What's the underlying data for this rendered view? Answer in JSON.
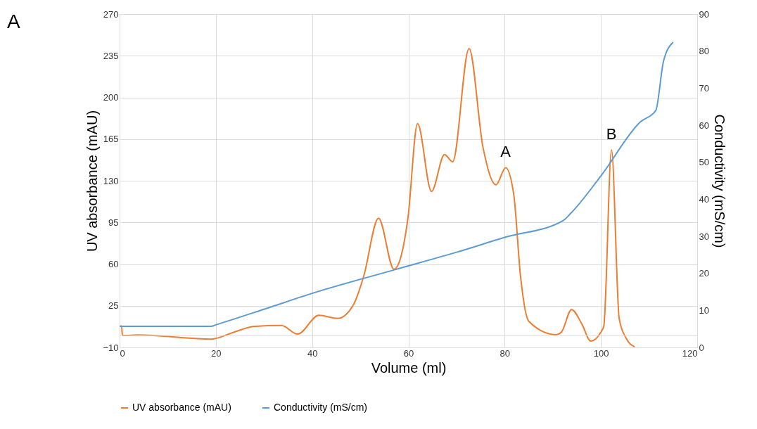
{
  "chart_data": {
    "type": "line",
    "xlabel": "Volume (ml)",
    "ylabel": "UV absorbance (mAU)",
    "y2label": "Conductivity (mS/cm)",
    "xlim": [
      0,
      120
    ],
    "xticks": [
      0,
      20,
      40,
      60,
      80,
      100,
      120
    ],
    "ylim": [
      -10,
      270
    ],
    "yticks": [
      -10,
      25,
      60,
      95,
      130,
      165,
      200,
      235,
      270
    ],
    "y2lim": [
      0,
      90
    ],
    "y2ticks": [
      0,
      10,
      20,
      30,
      40,
      50,
      60,
      70,
      80,
      90
    ],
    "grid": true,
    "legend": "bottom",
    "marker": "none",
    "line_style": "solid",
    "series": [
      {
        "name": "UV absorbance (mAU)",
        "color": "#ed7d31",
        "x": [
          0.1,
          0.4,
          0.6,
          3.9,
          19,
          23.9,
          27.8,
          33.6,
          37,
          41.4,
          45.3,
          48.7,
          50.7,
          53.8,
          57,
          58.5,
          59.9,
          61.9,
          64.8,
          67.5,
          69.2,
          72.6,
          75.5,
          78.2,
          80.2,
          81.9,
          83.3,
          85,
          90.6,
          91.8,
          93.9,
          96,
          97.9,
          99.9,
          100.6,
          102.2,
          103.8,
          105.3,
          107
        ],
        "values": [
          8,
          8,
          0,
          0.5,
          -3,
          3,
          7.6,
          8.4,
          1.2,
          17,
          14.4,
          26.8,
          49.6,
          98.6,
          55.7,
          67,
          98.6,
          178,
          121,
          152,
          146,
          241,
          158,
          126.6,
          141,
          118,
          49.6,
          12,
          0.6,
          3,
          21.8,
          10,
          -4.7,
          2.2,
          8,
          156,
          14,
          -2.8,
          -9.5
        ]
      },
      {
        "name": "Conductivity (mS/cm)",
        "color": "#5b9bd5",
        "axis": "y2",
        "x": [
          0,
          19,
          20,
          30,
          40,
          57.5,
          70,
          80,
          92.1,
          93.8,
          100,
          108.2,
          111.4,
          113,
          115
        ],
        "values": [
          5.7,
          5.7,
          6.1,
          10.3,
          14.6,
          21.1,
          25.7,
          29.7,
          34.2,
          36.3,
          46.3,
          60.9,
          64,
          77.3,
          82.4
        ]
      }
    ],
    "annotations": [
      "A",
      {
        "text": "A",
        "x": 80.2,
        "y": 141
      },
      {
        "text": "B",
        "x": 102.2,
        "y": 156
      }
    ]
  }
}
